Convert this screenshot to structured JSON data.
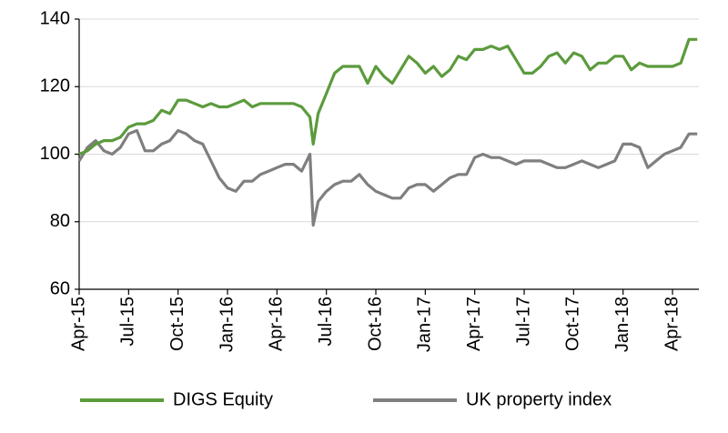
{
  "chart_data": {
    "type": "line",
    "x": [
      0,
      0.5,
      1,
      1.5,
      2,
      2.5,
      3,
      3.5,
      4,
      4.5,
      5,
      5.5,
      6,
      6.5,
      7,
      7.5,
      8,
      8.5,
      9,
      9.5,
      10,
      10.5,
      11,
      11.5,
      12,
      12.5,
      13,
      13.5,
      14,
      14.2,
      14.5,
      15,
      15.5,
      16,
      16.5,
      17,
      17.5,
      18,
      18.5,
      19,
      19.5,
      20,
      20.5,
      21,
      21.5,
      22,
      22.5,
      23,
      23.5,
      24,
      24.5,
      25,
      25.5,
      26,
      26.5,
      27,
      27.5,
      28,
      28.5,
      29,
      29.5,
      30,
      30.5,
      31,
      31.5,
      32,
      32.5,
      33,
      33.5,
      34,
      34.5,
      35,
      35.5,
      36,
      36.5,
      37,
      37.5
    ],
    "series": [
      {
        "name": "DIGS Equity",
        "color": "#5b9b3c",
        "values": [
          100,
          101,
          103,
          104,
          104,
          105,
          108,
          109,
          109,
          110,
          113,
          112,
          116,
          116,
          115,
          114,
          115,
          114,
          114,
          115,
          116,
          114,
          115,
          115,
          115,
          115,
          115,
          114,
          111,
          103,
          112,
          118,
          124,
          126,
          126,
          126,
          121,
          126,
          123,
          121,
          125,
          129,
          127,
          124,
          126,
          123,
          125,
          129,
          128,
          131,
          131,
          132,
          131,
          132,
          128,
          124,
          124,
          126,
          129,
          130,
          127,
          130,
          129,
          125,
          127,
          127,
          129,
          129,
          125,
          127,
          126,
          126,
          126,
          126,
          127,
          134,
          134
        ]
      },
      {
        "name": "UK property index",
        "color": "#7f7f7f",
        "values": [
          98,
          102,
          104,
          101,
          100,
          102,
          106,
          107,
          101,
          101,
          103,
          104,
          107,
          106,
          104,
          103,
          98,
          93,
          90,
          89,
          92,
          92,
          94,
          95,
          96,
          97,
          97,
          95,
          100,
          79,
          86,
          89,
          91,
          92,
          92,
          94,
          91,
          89,
          88,
          87,
          87,
          90,
          91,
          91,
          89,
          91,
          93,
          94,
          94,
          99,
          100,
          99,
          99,
          98,
          97,
          98,
          98,
          98,
          97,
          96,
          96,
          97,
          98,
          97,
          96,
          97,
          98,
          103,
          103,
          102,
          96,
          98,
          100,
          101,
          102,
          106,
          106
        ]
      }
    ],
    "xlim": [
      0,
      37.6
    ],
    "xticks": [
      {
        "value": 0,
        "label": "Apr-15"
      },
      {
        "value": 3,
        "label": "Jul-15"
      },
      {
        "value": 6,
        "label": "Oct-15"
      },
      {
        "value": 9,
        "label": "Jan-16"
      },
      {
        "value": 12,
        "label": "Apr-16"
      },
      {
        "value": 15,
        "label": "Jul-16"
      },
      {
        "value": 18,
        "label": "Oct-16"
      },
      {
        "value": 21,
        "label": "Jan-17"
      },
      {
        "value": 24,
        "label": "Apr-17"
      },
      {
        "value": 27,
        "label": "Jul-17"
      },
      {
        "value": 30,
        "label": "Oct-17"
      },
      {
        "value": 33,
        "label": "Jan-18"
      },
      {
        "value": 36,
        "label": "Apr-18"
      }
    ],
    "ylim": [
      60,
      140
    ],
    "yticks": [
      60,
      80,
      100,
      120,
      140
    ],
    "grid": true
  }
}
